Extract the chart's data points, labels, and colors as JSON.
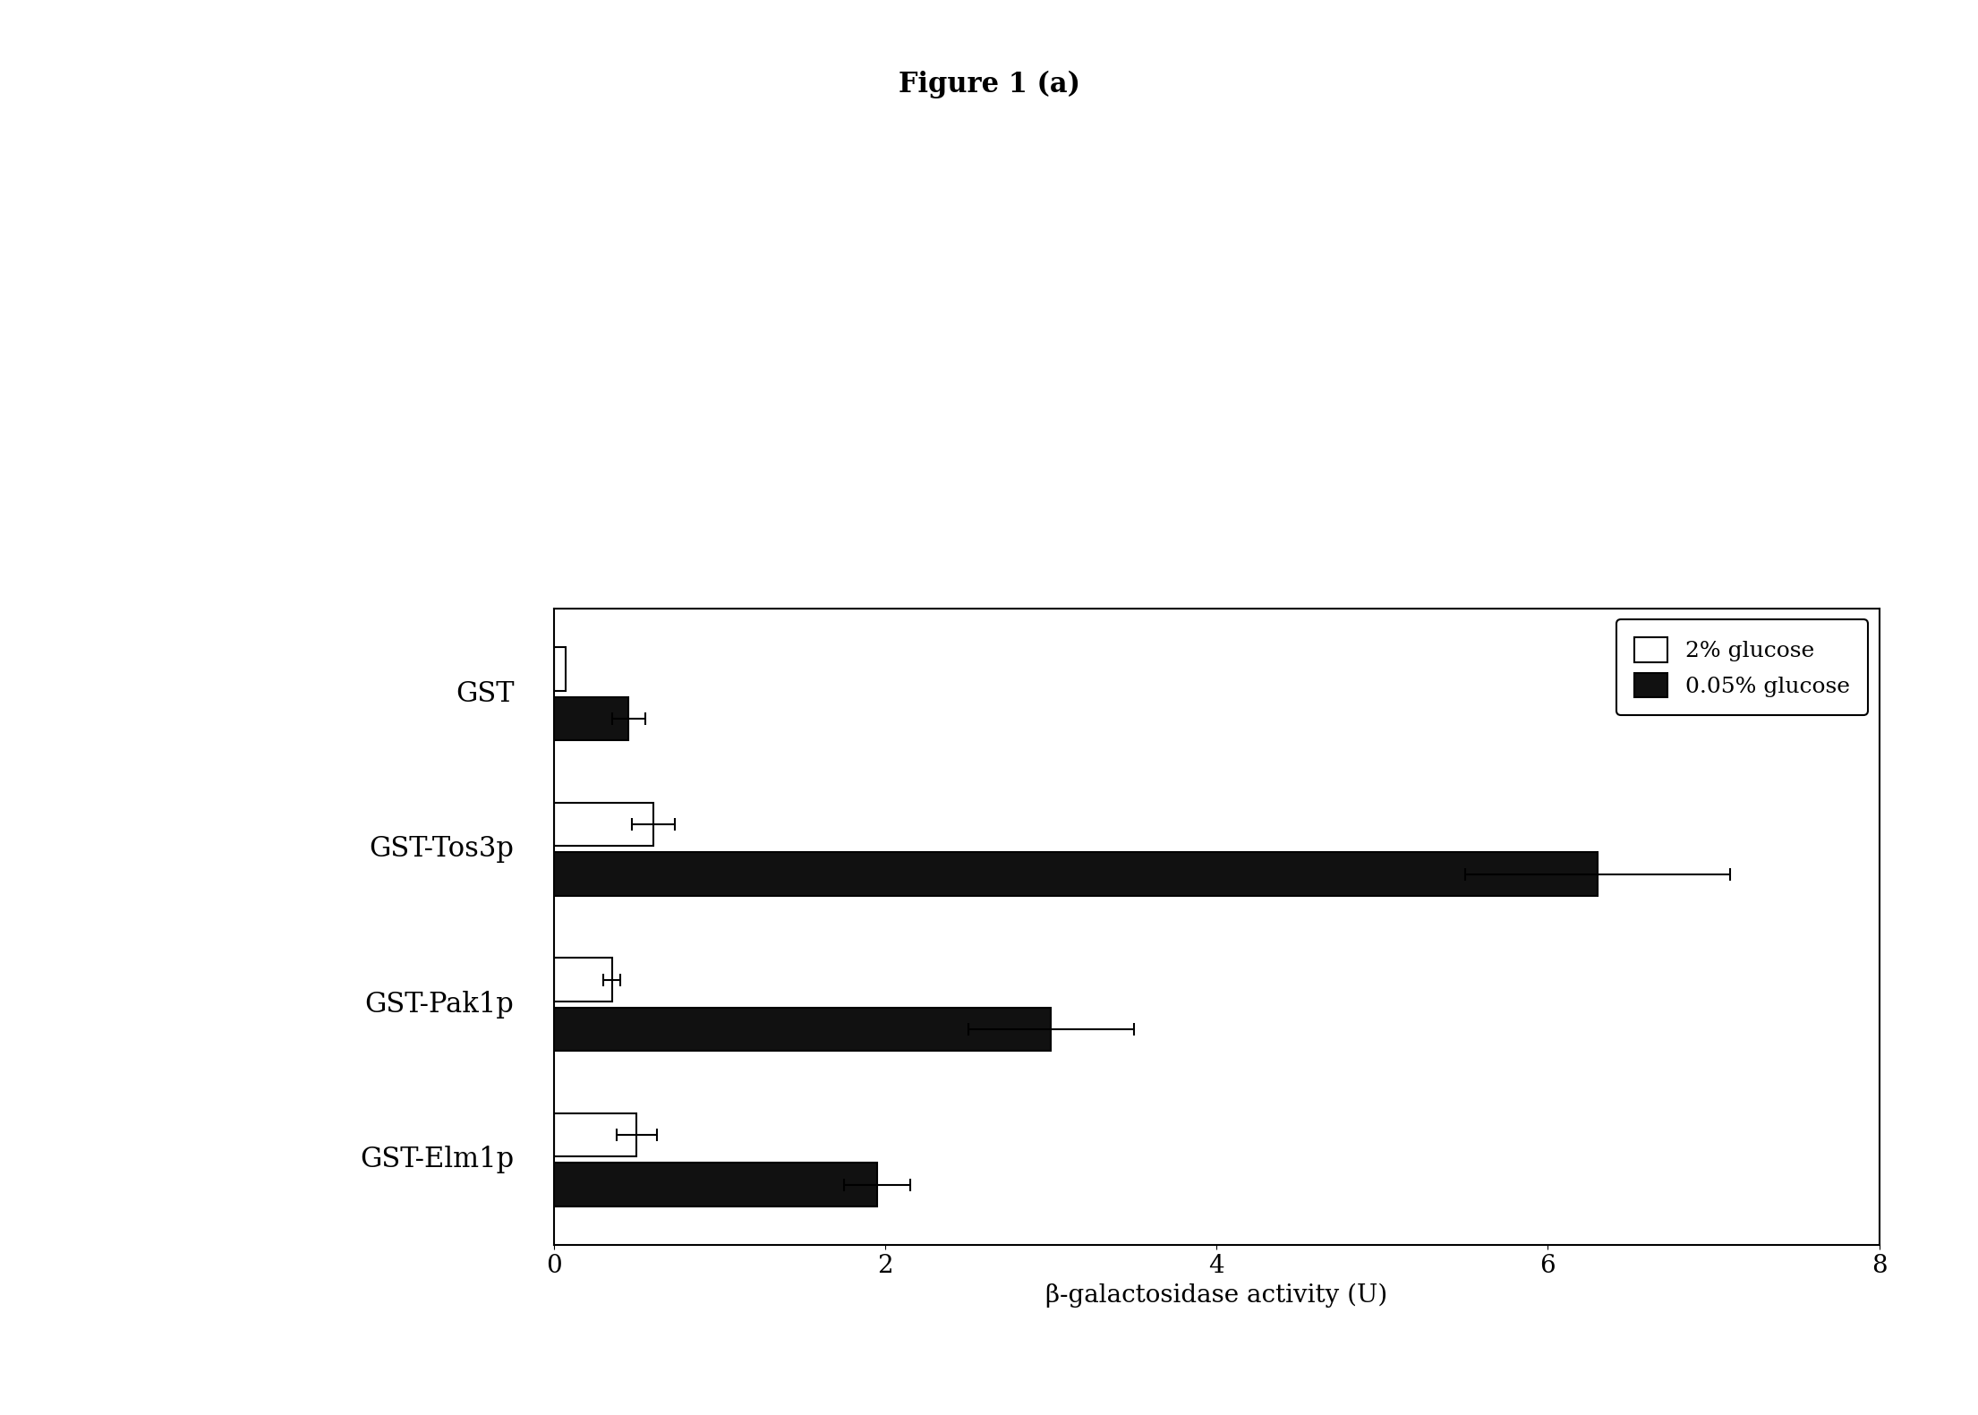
{
  "title": "Figure 1 (a)",
  "categories": [
    "GST",
    "GST-Tos3p",
    "GST-Pak1p",
    "GST-Elm1p"
  ],
  "glucose_2pct": [
    0.07,
    0.6,
    0.35,
    0.5
  ],
  "glucose_2pct_err": [
    0.0,
    0.13,
    0.05,
    0.12
  ],
  "glucose_005pct": [
    0.45,
    6.3,
    3.0,
    1.95
  ],
  "glucose_005pct_err": [
    0.1,
    0.8,
    0.5,
    0.2
  ],
  "xlabel": "β-galactosidase activity (U)",
  "xlim": [
    0,
    8
  ],
  "xticks": [
    0,
    2,
    4,
    6,
    8
  ],
  "legend_labels": [
    "2% glucose",
    "0.05% glucose"
  ],
  "bar_height": 0.28,
  "white_color": "#ffffff",
  "black_color": "#111111",
  "edge_color": "#000000",
  "bg_color": "#ffffff",
  "title_fontsize": 22,
  "label_fontsize": 20,
  "tick_fontsize": 20,
  "legend_fontsize": 18,
  "cat_fontsize": 22
}
